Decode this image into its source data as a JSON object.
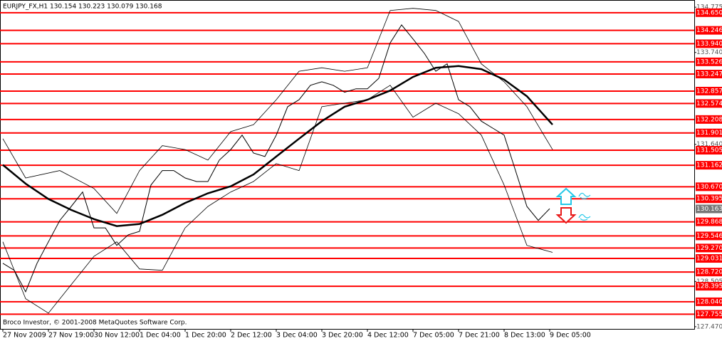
{
  "chart_data": {
    "type": "line",
    "title": "EURJPY_FX,H1  130.154 130.223 130.079 130.168",
    "footer": "Broco Investor, © 2001-2008 MetaQuotes Software Corp.",
    "xlim": [
      -1,
      242.75
    ],
    "ylim": [
      127.42,
      134.94
    ],
    "xticks": [
      {
        "value": 0,
        "label": "27 Nov 2009"
      },
      {
        "value": 16,
        "label": "27 Nov 19:00"
      },
      {
        "value": 32,
        "label": "30 Nov 12:00"
      },
      {
        "value": 48,
        "label": "1 Dec 04:00"
      },
      {
        "value": 64,
        "label": "1 Dec 20:00"
      },
      {
        "value": 80,
        "label": "2 Dec 12:00"
      },
      {
        "value": 96,
        "label": "3 Dec 04:00"
      },
      {
        "value": 112,
        "label": "3 Dec 20:00"
      },
      {
        "value": 128,
        "label": "4 Dec 12:00"
      },
      {
        "value": 144,
        "label": "7 Dec 05:00"
      },
      {
        "value": 160,
        "label": "7 Dec 21:00"
      },
      {
        "value": 176,
        "label": "8 Dec 13:00"
      },
      {
        "value": 192,
        "label": "9 Dec 05:00"
      }
    ],
    "yticks": [
      134.775,
      {
        "value": 133.74,
        "label": "133.740"
      },
      {
        "value": 131.64,
        "label": "131.640"
      },
      128.505,
      {
        "value": 127.47,
        "label": "127.470"
      }
    ],
    "levels_color": "#ff0000",
    "levels": [
      {
        "value": 134.65,
        "label": "134.650"
      },
      134.246,
      {
        "value": 133.94,
        "label": "133.940"
      },
      133.526,
      133.247,
      132.857,
      132.574,
      132.208,
      131.901,
      131.505,
      131.162,
      {
        "value": 130.67,
        "label": "130.670"
      },
      130.395,
      129.868,
      129.546,
      {
        "value": 129.27,
        "label": "129.270"
      },
      129.031,
      {
        "value": 128.72,
        "label": "128.720"
      },
      128.395,
      {
        "value": 128.04,
        "label": "128.040"
      },
      127.755
    ],
    "current_price": 130.163,
    "series": [
      {
        "name": "Close",
        "color": "#000000",
        "width": 1,
        "x": [
          0,
          4,
          8,
          12,
          16,
          20,
          24,
          28,
          32,
          36,
          40,
          44,
          48,
          52,
          56,
          60,
          64,
          68,
          72,
          76,
          80,
          84,
          88,
          92,
          96,
          100,
          104,
          108,
          112,
          116,
          120,
          124,
          128,
          132,
          136,
          140,
          144,
          148,
          152,
          156,
          160,
          164,
          168,
          172,
          176,
          180,
          184,
          188,
          192
        ],
        "values": [
          128.92,
          128.76,
          128.27,
          128.92,
          129.41,
          129.9,
          130.22,
          130.55,
          129.73,
          129.73,
          129.33,
          129.57,
          129.65,
          130.71,
          131.04,
          131.04,
          130.87,
          130.79,
          130.79,
          131.28,
          131.52,
          131.85,
          131.44,
          131.36,
          131.85,
          132.5,
          132.66,
          132.99,
          133.07,
          132.99,
          132.83,
          132.91,
          132.91,
          133.15,
          133.96,
          134.37,
          134.05,
          133.72,
          133.31,
          133.48,
          132.66,
          132.5,
          132.17,
          132.01,
          131.85,
          131.04,
          130.22,
          129.9,
          130.17
        ]
      },
      {
        "name": "Moving Average",
        "color": "#000000",
        "width": 2.5,
        "x": [
          0,
          8,
          16,
          24,
          32,
          40,
          48,
          56,
          64,
          72,
          80,
          88,
          96,
          104,
          112,
          120,
          128,
          136,
          144,
          152,
          160,
          168,
          176,
          184,
          193
        ],
        "values": [
          131.17,
          130.74,
          130.39,
          130.14,
          129.93,
          129.77,
          129.82,
          130.03,
          130.3,
          130.52,
          130.68,
          130.95,
          131.36,
          131.77,
          132.17,
          132.5,
          132.66,
          132.87,
          133.18,
          133.39,
          133.43,
          133.36,
          133.12,
          132.74,
          132.09
        ]
      },
      {
        "name": "Upper Band",
        "color": "#000000",
        "width": 0.8,
        "x": [
          0,
          8,
          20,
          32,
          40,
          48,
          56,
          64,
          72,
          80,
          88,
          96,
          104,
          112,
          120,
          128,
          136,
          144,
          152,
          160,
          168,
          176,
          184,
          193
        ],
        "values": [
          131.77,
          130.87,
          131.04,
          130.63,
          130.06,
          131.04,
          131.61,
          131.52,
          131.28,
          131.93,
          132.09,
          132.66,
          133.31,
          133.39,
          133.31,
          133.39,
          134.7,
          134.75,
          134.7,
          134.45,
          133.48,
          133.07,
          132.5,
          131.52
        ]
      },
      {
        "name": "Lower Band",
        "color": "#000000",
        "width": 0.8,
        "x": [
          0,
          8,
          16,
          24,
          32,
          40,
          48,
          56,
          64,
          72,
          80,
          88,
          96,
          104,
          112,
          120,
          128,
          136,
          144,
          152,
          160,
          168,
          176,
          184,
          193
        ],
        "values": [
          129.41,
          128.11,
          127.78,
          128.43,
          129.08,
          129.41,
          128.79,
          128.76,
          129.73,
          130.22,
          130.55,
          130.79,
          131.2,
          131.04,
          132.5,
          132.58,
          132.66,
          132.99,
          132.26,
          132.58,
          132.34,
          131.85,
          130.71,
          129.33,
          129.17
        ]
      }
    ]
  }
}
